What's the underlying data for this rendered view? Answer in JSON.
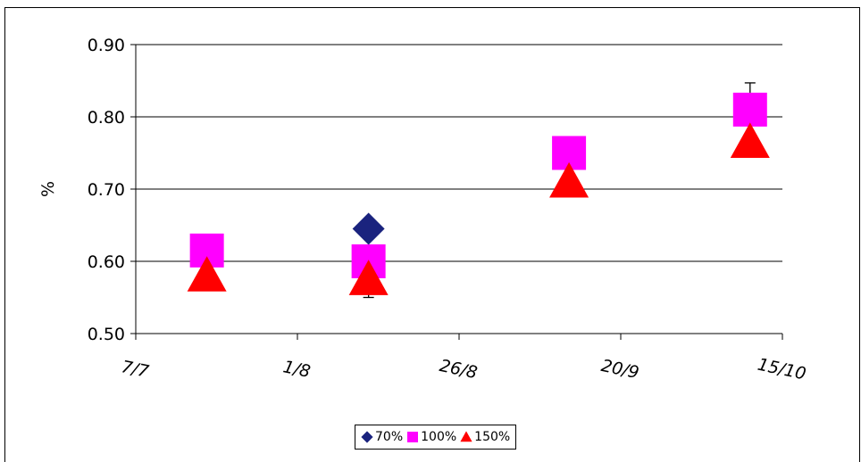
{
  "chart_data": {
    "type": "scatter",
    "ylabel": "%",
    "xlabel": "",
    "ylim": [
      0.5,
      0.9
    ],
    "yticks": [
      "0.50",
      "0.60",
      "0.70",
      "0.80",
      "0.90"
    ],
    "xticks": [
      "7/7",
      "1/8",
      "26/8",
      "20/9",
      "15/10"
    ],
    "x_axis": "date",
    "grid": "horizontal",
    "legend_position": "bottom",
    "series": [
      {
        "name": "70%",
        "marker": "diamond",
        "color": "#1a237e",
        "points": [
          {
            "x": "12/8",
            "y": 0.645
          }
        ]
      },
      {
        "name": "100%",
        "marker": "square",
        "color": "#ff00ff",
        "points": [
          {
            "x": "18/7",
            "y": 0.615,
            "err": 0.0
          },
          {
            "x": "12/8",
            "y": 0.6,
            "err": 0.05
          },
          {
            "x": "12/9",
            "y": 0.75,
            "err": 0.02
          },
          {
            "x": "10/10",
            "y": 0.81,
            "err": 0.037
          }
        ]
      },
      {
        "name": "150%",
        "marker": "triangle",
        "color": "#ff0000",
        "points": [
          {
            "x": "18/7",
            "y": 0.58
          },
          {
            "x": "12/8",
            "y": 0.575
          },
          {
            "x": "12/9",
            "y": 0.71
          },
          {
            "x": "10/10",
            "y": 0.765
          }
        ]
      }
    ]
  }
}
